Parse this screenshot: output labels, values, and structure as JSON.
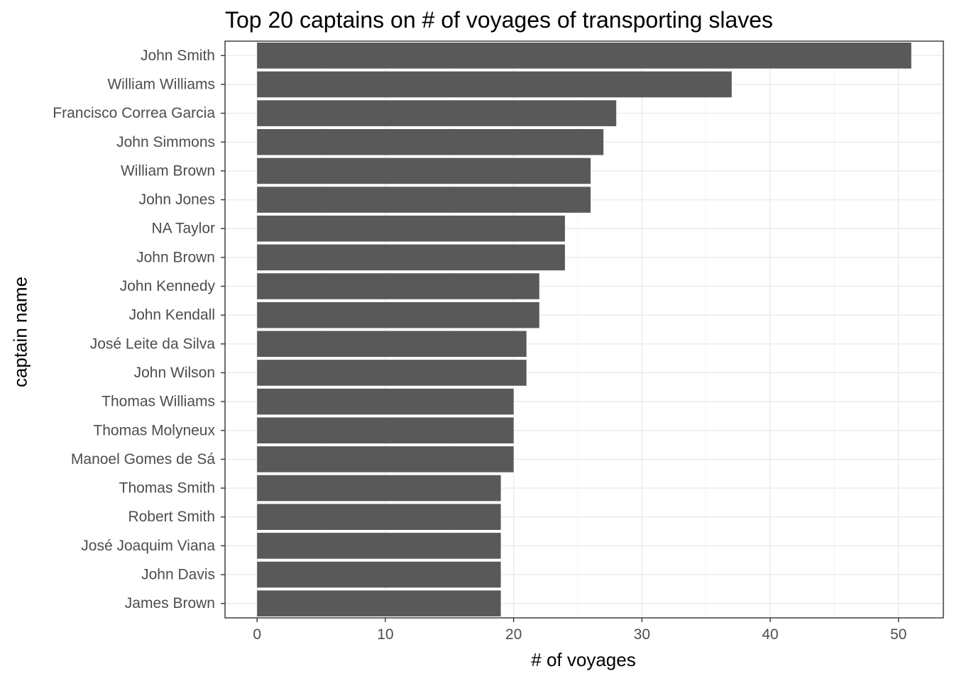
{
  "chart_data": {
    "type": "bar",
    "orientation": "horizontal",
    "title": "Top 20 captains on # of voyages of transporting slaves",
    "xlabel": "# of voyages",
    "ylabel": "captain name",
    "categories": [
      "John Smith",
      "William Williams",
      "Francisco Correa Garcia",
      "John Simmons",
      "William Brown",
      "John Jones",
      "NA Taylor",
      "John Brown",
      "John Kennedy",
      "John Kendall",
      "José Leite da Silva",
      "John Wilson",
      "Thomas Williams",
      "Thomas Molyneux",
      "Manoel Gomes de Sá",
      "Thomas Smith",
      "Robert Smith",
      "José Joaquim Viana",
      "John Davis",
      "James Brown"
    ],
    "values": [
      51,
      37,
      28,
      27,
      26,
      26,
      24,
      24,
      22,
      22,
      21,
      21,
      20,
      20,
      20,
      19,
      19,
      19,
      19,
      19
    ],
    "xlim": [
      -2.5,
      53.5
    ],
    "x_ticks": [
      0,
      10,
      20,
      30,
      40,
      50
    ],
    "grid": true,
    "legend": "none",
    "colors": {
      "bar": "#595959",
      "grid_major": "#ebebeb",
      "grid_minor": "#f4f4f4",
      "border": "#333333",
      "tick_text": "#4d4d4d"
    }
  }
}
